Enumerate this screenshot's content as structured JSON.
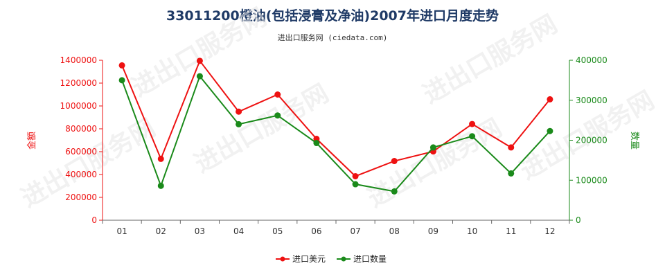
{
  "chart_data": {
    "type": "line",
    "title": "33011200橙油(包括浸膏及净油)2007年进口月度走势",
    "subtitle": "进出口服务网 (ciedata.com)",
    "categories": [
      "01",
      "02",
      "03",
      "04",
      "05",
      "06",
      "07",
      "08",
      "09",
      "10",
      "11",
      "12"
    ],
    "series": [
      {
        "name": "进口美元",
        "axis": "left",
        "color": "#ee1111",
        "values": [
          1355000,
          537000,
          1395000,
          950000,
          1100000,
          712000,
          385000,
          518000,
          602000,
          842000,
          637000,
          1058000
        ]
      },
      {
        "name": "进口数量",
        "axis": "right",
        "color": "#1a8a1a",
        "values": [
          350000,
          86000,
          360000,
          240000,
          262000,
          193000,
          90000,
          72000,
          182000,
          210000,
          117000,
          223000
        ]
      }
    ],
    "y_left": {
      "label": "金额",
      "ticks": [
        "0",
        "200000",
        "400000",
        "600000",
        "800000",
        "1000000",
        "1200000",
        "1400000"
      ],
      "range": [
        0,
        1400000
      ],
      "color": "#ee1111"
    },
    "y_right": {
      "label": "数量",
      "ticks": [
        "0",
        "100000",
        "200000",
        "300000",
        "400000"
      ],
      "range": [
        0,
        400000
      ],
      "color": "#1a8a1a"
    },
    "legend_position": "bottom-center",
    "watermark": "进出口服务网"
  }
}
